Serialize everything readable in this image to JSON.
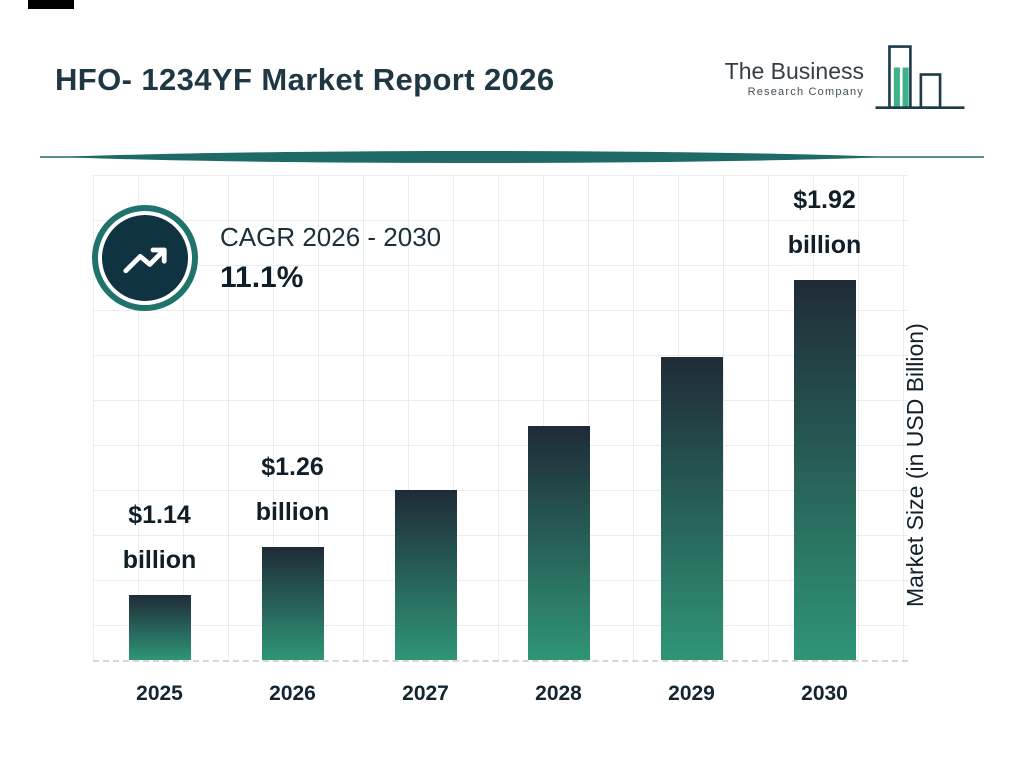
{
  "header": {
    "title": "HFO- 1234YF Market Report 2026",
    "logo": {
      "line1": "The Business",
      "line2": "Research Company"
    }
  },
  "cagr": {
    "label": "CAGR 2026 - 2030",
    "value": "11.1%"
  },
  "chart_data": {
    "type": "bar",
    "title": "HFO- 1234YF Market Report 2026",
    "xlabel": "",
    "ylabel": "Market Size (in USD Billion)",
    "categories": [
      "2025",
      "2026",
      "2027",
      "2028",
      "2029",
      "2030"
    ],
    "values": [
      1.14,
      1.26,
      1.4,
      1.56,
      1.73,
      1.92
    ],
    "unit": "USD Billion",
    "bar_labels": [
      {
        "amount": "$1.14",
        "unit": "billion"
      },
      {
        "amount": "$1.26",
        "unit": "billion"
      },
      null,
      null,
      null,
      {
        "amount": "$1.92",
        "unit": "billion"
      }
    ],
    "cagr_label": "CAGR 2026 - 2030",
    "cagr_value": "11.1%",
    "ylim": [
      0.98,
      2.18
    ],
    "grid": true,
    "legend": false,
    "bar_gradient": [
      "#1f2b37",
      "#2f9577"
    ]
  },
  "colors": {
    "accent_teal": "#20736c",
    "dark_navy": "#103341",
    "title_color": "#1e3742",
    "grid_line": "#ececec",
    "logo_green": "#3cb487"
  }
}
